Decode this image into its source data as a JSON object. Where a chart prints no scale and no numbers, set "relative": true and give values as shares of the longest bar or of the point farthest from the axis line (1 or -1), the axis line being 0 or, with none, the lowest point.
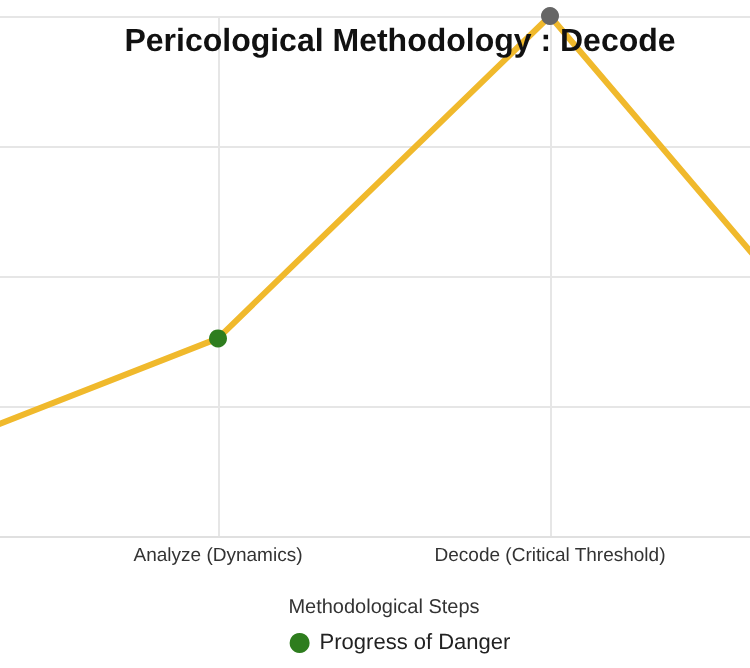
{
  "chart_data": {
    "type": "line",
    "title": "Pericological Methodology : Decode",
    "xlabel": "Methodological Steps",
    "categories": [
      null,
      "Analyze (Dynamics)",
      "Decode (Critical Threshold)",
      null
    ],
    "relative": true,
    "series": [
      {
        "name": "Progress of Danger",
        "color": "#f0b92c",
        "colors": [
          "#2e7d1e",
          "#2e7d1e",
          "#666666",
          "#2e7d1e"
        ],
        "values": [
          0.13,
          0.38,
          1,
          0.25
        ]
      }
    ],
    "grid": true,
    "legend": "bottom",
    "marker": "circle",
    "line_style": "solid"
  }
}
